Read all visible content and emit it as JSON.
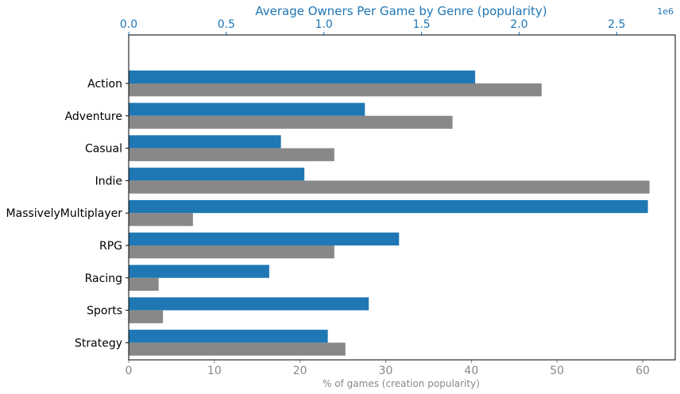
{
  "chart_data": {
    "type": "bar",
    "orientation": "horizontal",
    "categories": [
      "Action",
      "Adventure",
      "Casual",
      "Indie",
      "MassivelyMultiplayer",
      "RPG",
      "Racing",
      "Sports",
      "Strategy"
    ],
    "series": [
      {
        "axis": "top",
        "color": "#1f77b4",
        "values": [
          1775000,
          1210000,
          780000,
          900000,
          2660000,
          1385000,
          720000,
          1230000,
          1020000
        ]
      },
      {
        "axis": "bottom",
        "color": "#888888",
        "values": [
          48.2,
          37.8,
          24.0,
          60.8,
          7.5,
          24.0,
          3.5,
          4.0,
          25.3
        ]
      }
    ],
    "top_axis": {
      "title": "Average Owners Per Game by Genre (popularity)",
      "offset_label": "1e6",
      "ticks": [
        "0.0",
        "0.5",
        "1.0",
        "1.5",
        "2.0",
        "2.5"
      ],
      "tick_values": [
        0,
        500000,
        1000000,
        1500000,
        2000000,
        2500000
      ],
      "xlim": [
        0,
        2800000
      ],
      "color": "#1f77b4"
    },
    "bottom_axis": {
      "xlabel": "% of games (creation popularity)",
      "ticks": [
        "0",
        "10",
        "20",
        "30",
        "40",
        "50",
        "60"
      ],
      "tick_values": [
        0,
        10,
        20,
        30,
        40,
        50,
        60
      ],
      "xlim": [
        0,
        63.8
      ],
      "color": "#888888"
    },
    "legend": "none",
    "grid": false
  }
}
